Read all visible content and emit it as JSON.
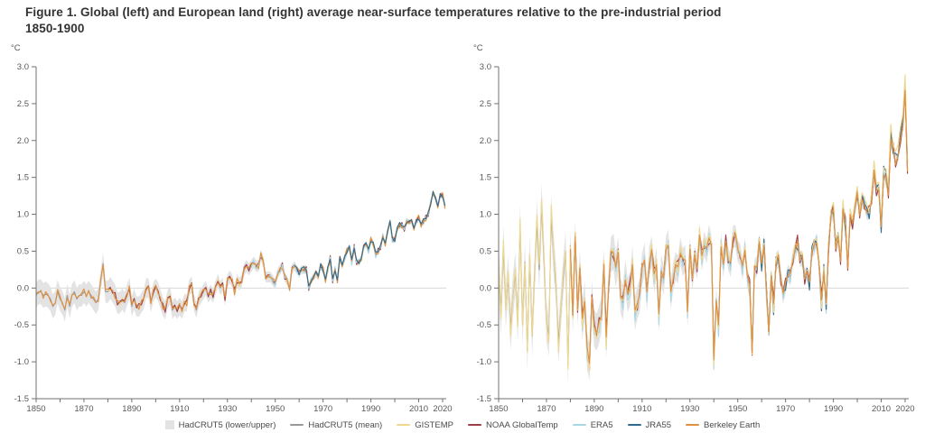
{
  "figure": {
    "title_line1": "Figure 1. Global (left) and European land (right) average near-surface temperatures relative to the pre-industrial period",
    "title_line2": "1850-1900"
  },
  "colors": {
    "band": "#e3e3e3",
    "hadcrut_mean": "#999999",
    "gistemp": "#eed78e",
    "noaa": "#9e3e49",
    "era5": "#a9d7e4",
    "jra55": "#2f6b8e",
    "berkeley": "#e0913f",
    "axis": "#707070",
    "tick_text": "#595959",
    "zero_line": "#d8d8d8"
  },
  "legend": [
    {
      "label": "HadCRUT5 (lower/upper)",
      "color": "#e3e3e3",
      "swatch": "box"
    },
    {
      "label": "HadCRUT5 (mean)",
      "color": "#999999",
      "swatch": "line"
    },
    {
      "label": "GISTEMP",
      "color": "#eed78e",
      "swatch": "line"
    },
    {
      "label": "NOAA GlobalTemp",
      "color": "#9e3e49",
      "swatch": "line"
    },
    {
      "label": "ERA5",
      "color": "#a9d7e4",
      "swatch": "line"
    },
    {
      "label": "JRA55",
      "color": "#2f6b8e",
      "swatch": "line"
    },
    {
      "label": "Berkeley Earth",
      "color": "#e0913f",
      "swatch": "line"
    }
  ],
  "chart_data": [
    {
      "type": "line",
      "region": "Global",
      "unit": "°C",
      "ylim": [
        -1.5,
        3.0
      ],
      "yticks": [
        3.0,
        2.5,
        2.0,
        1.5,
        1.0,
        0.5,
        0.0,
        -0.5,
        -1.0,
        -1.5
      ],
      "xticks_labeled": [
        1850,
        1870,
        1890,
        1910,
        1930,
        1950,
        1970,
        1990,
        2010,
        2020
      ],
      "xticks_minor_step": 10,
      "year_start": 1850,
      "year_end": 2021,
      "grid": "zero-line-only",
      "band": {
        "name": "HadCRUT5 (lower/upper)",
        "color": "#e3e3e3",
        "halfwidth_by_decade": [
          0.17,
          0.16,
          0.15,
          0.15,
          0.14,
          0.13,
          0.12,
          0.1,
          0.09,
          0.08,
          0.07,
          0.06,
          0.05,
          0.05,
          0.04,
          0.04,
          0.03,
          0.03
        ]
      },
      "series": [
        {
          "name": "HadCRUT5 (mean)",
          "color": "#999999",
          "start_year": 1850,
          "values": [
            -0.1,
            -0.05,
            -0.05,
            -0.1,
            -0.08,
            -0.1,
            -0.15,
            -0.25,
            -0.2,
            -0.05,
            -0.15,
            -0.2,
            -0.3,
            -0.1,
            -0.25,
            -0.1,
            -0.05,
            -0.15,
            -0.1,
            -0.1,
            -0.05,
            -0.1,
            -0.05,
            -0.1,
            -0.15,
            -0.2,
            -0.15,
            0.1,
            0.33,
            -0.05,
            -0.05,
            0.0,
            -0.05,
            -0.1,
            -0.2,
            -0.2,
            -0.15,
            -0.2,
            -0.1,
            0.0,
            -0.25,
            -0.15,
            -0.25,
            -0.25,
            -0.2,
            -0.15,
            0.0,
            0.0,
            -0.2,
            -0.05,
            0.0,
            -0.05,
            -0.15,
            -0.25,
            -0.3,
            -0.15,
            -0.1,
            -0.3,
            -0.25,
            -0.3,
            -0.25,
            -0.3,
            -0.2,
            -0.2,
            0.0,
            0.05,
            -0.2,
            -0.3,
            -0.15,
            -0.1,
            -0.05,
            0.0,
            -0.1,
            -0.05,
            -0.1,
            0.0,
            0.1,
            0.0,
            0.05,
            -0.15,
            0.1,
            0.15,
            0.1,
            -0.05,
            0.1,
            0.05,
            0.1,
            0.25,
            0.3,
            0.25,
            0.3,
            0.35,
            0.3,
            0.3,
            0.45,
            0.35,
            0.15,
            0.15,
            0.15,
            0.1,
            0.05,
            0.2,
            0.25,
            0.3,
            0.15,
            0.1,
            0.0,
            0.25,
            0.3,
            0.25,
            0.2,
            0.25,
            0.25,
            0.25,
            0.0,
            0.1,
            0.15,
            0.2,
            0.15,
            0.3,
            0.25,
            0.1,
            0.25,
            0.4,
            0.1,
            0.25,
            0.1,
            0.4,
            0.3,
            0.4,
            0.5,
            0.55,
            0.35,
            0.55,
            0.35,
            0.35,
            0.4,
            0.55,
            0.6,
            0.5,
            0.65,
            0.6,
            0.45,
            0.5,
            0.55,
            0.7,
            0.6,
            0.75,
            0.9,
            0.65,
            0.65,
            0.8,
            0.85,
            0.85,
            0.8,
            0.9,
            0.9,
            0.9,
            0.8,
            0.9,
            0.95,
            0.85,
            0.9,
            0.95,
            1.0,
            1.15,
            1.3,
            1.2,
            1.1,
            1.25,
            1.25,
            1.1
          ]
        },
        {
          "name": "GISTEMP",
          "color": "#eed78e",
          "start_year": 1880,
          "offset_pattern": [
            0.02,
            -0.03,
            0.03,
            -0.02,
            0.01,
            -0.03,
            0.02,
            0.03,
            -0.02,
            -0.01
          ]
        },
        {
          "name": "NOAA GlobalTemp",
          "color": "#9e3e49",
          "start_year": 1880,
          "offset_pattern": [
            0.03,
            0.01,
            -0.02,
            0.04,
            -0.03,
            0.02,
            -0.01,
            0.03,
            0.02,
            -0.02
          ]
        },
        {
          "name": "ERA5",
          "color": "#a9d7e4",
          "start_year": 1940,
          "offset_pattern": [
            -0.02,
            0.03,
            -0.04,
            0.02,
            -0.01,
            0.04,
            -0.03,
            0.01,
            0.02,
            -0.03
          ]
        },
        {
          "name": "Berkeley Earth",
          "color": "#e0913f",
          "start_year": 1850,
          "offset_pattern": [
            0.04,
            -0.02,
            0.02,
            -0.04,
            0.03,
            0.01,
            -0.03,
            0.02,
            -0.01,
            0.03
          ]
        },
        {
          "name": "JRA55",
          "color": "#2f6b8e",
          "start_year": 1958,
          "offset_pattern": [
            0.01,
            0.03,
            -0.02,
            0.02,
            0.04,
            -0.01,
            0.03,
            -0.02,
            0.01,
            0.02
          ]
        }
      ]
    },
    {
      "type": "line",
      "region": "European land",
      "unit": "°C",
      "ylim": [
        -1.5,
        3.0
      ],
      "yticks": [
        3.0,
        2.5,
        2.0,
        1.5,
        1.0,
        0.5,
        0.0,
        -0.5,
        -1.0,
        -1.5
      ],
      "xticks_labeled": [
        1850,
        1870,
        1890,
        1910,
        1930,
        1950,
        1970,
        1990,
        2010,
        2020
      ],
      "xticks_minor_step": 10,
      "year_start": 1850,
      "year_end": 2021,
      "grid": "zero-line-only",
      "band": {
        "name": "HadCRUT5 (lower/upper)",
        "color": "#e3e3e3",
        "halfwidth_by_decade": [
          0.3,
          0.28,
          0.27,
          0.26,
          0.25,
          0.24,
          0.22,
          0.2,
          0.18,
          0.16,
          0.15,
          0.13,
          0.12,
          0.1,
          0.09,
          0.08,
          0.07,
          0.06
        ]
      },
      "series": [
        {
          "name": "HadCRUT5 (mean)",
          "color": "#999999",
          "start_year": 1850,
          "values": [
            0.3,
            -0.35,
            0.55,
            -0.25,
            0.15,
            -0.55,
            -0.1,
            0.2,
            -0.45,
            0.85,
            -0.5,
            0.35,
            -0.85,
            0.45,
            -0.65,
            0.15,
            0.9,
            0.25,
            1.15,
            0.35,
            -0.45,
            -0.65,
            1.0,
            0.45,
            0.05,
            -0.75,
            -0.3,
            0.15,
            0.5,
            -1.05,
            0.5,
            -0.35,
            0.65,
            -0.25,
            0.25,
            -0.45,
            -0.15,
            -0.85,
            -1.0,
            -0.15,
            -0.55,
            -0.6,
            -0.5,
            -0.35,
            0.3,
            -0.7,
            0.05,
            0.45,
            0.5,
            0.25,
            0.45,
            -0.1,
            -0.2,
            0.15,
            -0.1,
            0.0,
            0.35,
            -0.35,
            -0.2,
            -0.1,
            0.25,
            0.4,
            -0.1,
            0.35,
            0.5,
            0.15,
            0.35,
            -0.4,
            0.25,
            0.1,
            0.5,
            0.6,
            -0.1,
            0.15,
            0.3,
            0.25,
            0.5,
            0.35,
            0.4,
            -0.35,
            0.5,
            0.15,
            0.4,
            0.3,
            0.7,
            0.4,
            0.6,
            0.5,
            0.7,
            0.55,
            -1.0,
            -0.15,
            -0.55,
            0.6,
            0.3,
            0.6,
            0.4,
            0.3,
            0.7,
            0.7,
            0.5,
            0.45,
            0.25,
            0.55,
            0.15,
            0.0,
            -0.85,
            0.25,
            0.3,
            0.6,
            0.3,
            0.6,
            -0.1,
            -0.55,
            0.15,
            -0.25,
            0.35,
            0.4,
            0.15,
            -0.1,
            0.05,
            0.2,
            0.15,
            0.4,
            0.5,
            0.6,
            0.4,
            0.4,
            0.15,
            0.2,
            0.05,
            0.5,
            0.55,
            0.65,
            0.3,
            -0.2,
            0.25,
            -0.25,
            0.6,
            0.95,
            1.05,
            0.55,
            0.65,
            0.4,
            1.05,
            0.85,
            0.3,
            0.95,
            0.9,
            1.05,
            1.25,
            1.0,
            1.15,
            1.15,
            1.0,
            1.0,
            1.2,
            1.55,
            1.35,
            1.3,
            0.8,
            1.55,
            1.45,
            1.3,
            2.0,
            1.85,
            1.7,
            1.75,
            2.05,
            2.15,
            2.65,
            1.6
          ]
        },
        {
          "name": "NOAA GlobalTemp",
          "color": "#9e3e49",
          "start_year": 1880,
          "offset_pattern": [
            0.08,
            -0.05,
            0.1,
            -0.08,
            0.05,
            0.12,
            -0.06,
            0.04,
            -0.1,
            0.06
          ]
        },
        {
          "name": "ERA5",
          "color": "#a9d7e4",
          "start_year": 1880,
          "scale": 1.05,
          "offset_pattern": [
            -0.05,
            0.02,
            -0.08,
            0.03,
            -0.06,
            -0.1,
            0.02,
            -0.08,
            0.01,
            -0.04
          ]
        },
        {
          "name": "JRA55",
          "color": "#2f6b8e",
          "start_year": 1958,
          "scale": 1.04,
          "offset_pattern": [
            -0.04,
            0.06,
            -0.08,
            0.04,
            0.08,
            -0.06,
            0.05,
            -0.1,
            0.06,
            -0.03
          ]
        },
        {
          "name": "GISTEMP",
          "color": "#eed78e",
          "start_year": 1850,
          "scale": 1.08,
          "offset_pattern": [
            0.03,
            -0.04,
            0.05,
            -0.03,
            0.06,
            -0.06,
            0.02,
            0.05,
            -0.04,
            0.03
          ]
        },
        {
          "name": "Berkeley Earth",
          "color": "#e0913f",
          "start_year": 1880,
          "offset_pattern": [
            0.03,
            -0.02,
            0.05,
            -0.04,
            0.02,
            0.04,
            -0.03,
            0.05,
            -0.02,
            0.03
          ]
        }
      ]
    }
  ]
}
